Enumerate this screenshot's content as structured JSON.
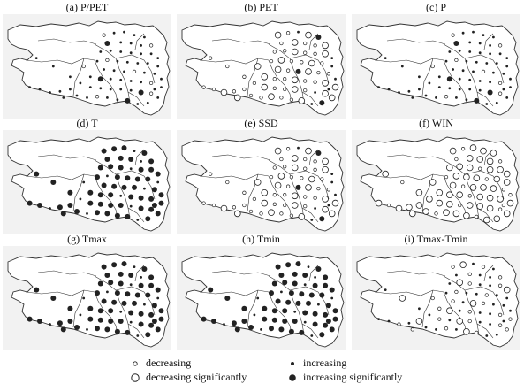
{
  "figure": {
    "panels": [
      {
        "title": "(a) P/PET",
        "pattern": "mostly-increasing-small"
      },
      {
        "title": "(b) PET",
        "pattern": "mostly-decreasing-mixed"
      },
      {
        "title": "(c) P",
        "pattern": "mostly-increasing-small"
      },
      {
        "title": "(d) T",
        "pattern": "increasing-significantly"
      },
      {
        "title": "(e) SSD",
        "pattern": "mostly-decreasing-mixed"
      },
      {
        "title": "(f) WIN",
        "pattern": "decreasing-significantly"
      },
      {
        "title": "(g) Tmax",
        "pattern": "increasing-significantly"
      },
      {
        "title": "(h) Tmin",
        "pattern": "increasing-significantly"
      },
      {
        "title": "(i) Tmax-Tmin",
        "pattern": "mixed-small"
      }
    ],
    "legend": {
      "decreasing": "decreasing",
      "decreasing_significantly": "decreasing significantly",
      "increasing": "increasing",
      "increasing_significantly": "increasing significantly"
    },
    "colors": {
      "background": "#ffffff",
      "land": "#f2f2f2",
      "border": "#333333",
      "marker": "#222222"
    }
  }
}
